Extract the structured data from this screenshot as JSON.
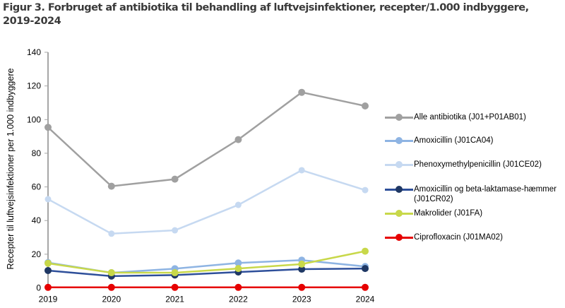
{
  "title": "Figur 3. Forbruget af antibiotika til behandling af luftvejsinfektioner, recepter/1.000 indbyggere, 2019-2024",
  "chart_data": {
    "type": "line",
    "title": "Figur 3. Forbruget af antibiotika til behandling af luftvejsinfektioner, recepter/1.000 indbyggere, 2019-2024",
    "xlabel": "",
    "ylabel": "Recepter til luftvejsinfektioner per 1.000 indbyggere",
    "x": [
      "2019",
      "2020",
      "2021",
      "2022",
      "2023",
      "2024"
    ],
    "ylim": [
      0,
      140
    ],
    "yticks": [
      0,
      20,
      40,
      60,
      80,
      100,
      120,
      140
    ],
    "grid": false,
    "legend_position": "right",
    "series": [
      {
        "name": "Alle antibiotika (J01+P01AB01)",
        "color": "#A0A0A0",
        "values": [
          95.4,
          60.4,
          64.6,
          88.1,
          116.2,
          108.1
        ]
      },
      {
        "name": "Amoxicillin (J01CA04)",
        "color": "#8EB4E3",
        "values": [
          15.0,
          9.0,
          11.4,
          14.8,
          16.5,
          12.7
        ]
      },
      {
        "name": "Phenoxymethylpenicillin (J01CE02)",
        "color": "#C6D9F1",
        "values": [
          52.7,
          32.2,
          34.2,
          49.3,
          69.9,
          58.1
        ]
      },
      {
        "name": "Amoxicillin og beta-laktamase-hæmmer (J01CR02)",
        "color": "#1F3864",
        "values": [
          10.3,
          7.0,
          7.6,
          9.4,
          11.1,
          11.5
        ]
      },
      {
        "name": "Makrolider (J01FA)",
        "color": "#C8D84A",
        "values": [
          14.6,
          9.0,
          9.0,
          11.5,
          14.1,
          21.8
        ]
      },
      {
        "name": "Ciprofloxacin (J01MA02)",
        "color": "#E60000",
        "values": [
          0.3,
          0.3,
          0.3,
          0.3,
          0.3,
          0.3
        ]
      }
    ]
  },
  "legend": {
    "items": [
      {
        "label": "Alle antibiotika (J01+P01AB01)",
        "line": "#A0A0A0",
        "dot": "#A0A0A0"
      },
      {
        "label": "Amoxicillin (J01CA04)",
        "line": "#8EB4E3",
        "dot": "#8EB4E3"
      },
      {
        "label": "Phenoxymethylpenicillin (J01CE02)",
        "line": "#C6D9F1",
        "dot": "#C6D9F1"
      },
      {
        "label": "Amoxicillin og beta-laktamase-hæmmer (J01CR02)",
        "line": "#2E4F9A",
        "dot": "#1F3864"
      },
      {
        "label": "Makrolider (J01FA)",
        "line": "#C8D84A",
        "dot": "#C8D84A"
      },
      {
        "label": "Ciprofloxacin (J01MA02)",
        "line": "#E60000",
        "dot": "#E60000"
      }
    ]
  }
}
